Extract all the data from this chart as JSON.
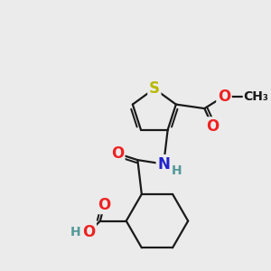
{
  "bg_color": "#ebebeb",
  "bond_color": "#1a1a1a",
  "bond_width": 1.6,
  "atoms": {
    "S": {
      "label": "S",
      "color": "#b8b800"
    },
    "N": {
      "label": "N",
      "color": "#2222cc"
    },
    "H_N": {
      "label": "H",
      "color": "#559999"
    },
    "O1": {
      "label": "O",
      "color": "#ee2222"
    },
    "O2": {
      "label": "O",
      "color": "#ee2222"
    },
    "H_O": {
      "label": "H",
      "color": "#559999"
    },
    "O3": {
      "label": "O",
      "color": "#ee2222"
    },
    "O4": {
      "label": "O",
      "color": "#ee2222"
    },
    "Me": {
      "label": "O",
      "color": "#1a1a1a"
    }
  },
  "font_size_atom": 12,
  "font_size_small": 10,
  "font_size_methoxy": 11
}
